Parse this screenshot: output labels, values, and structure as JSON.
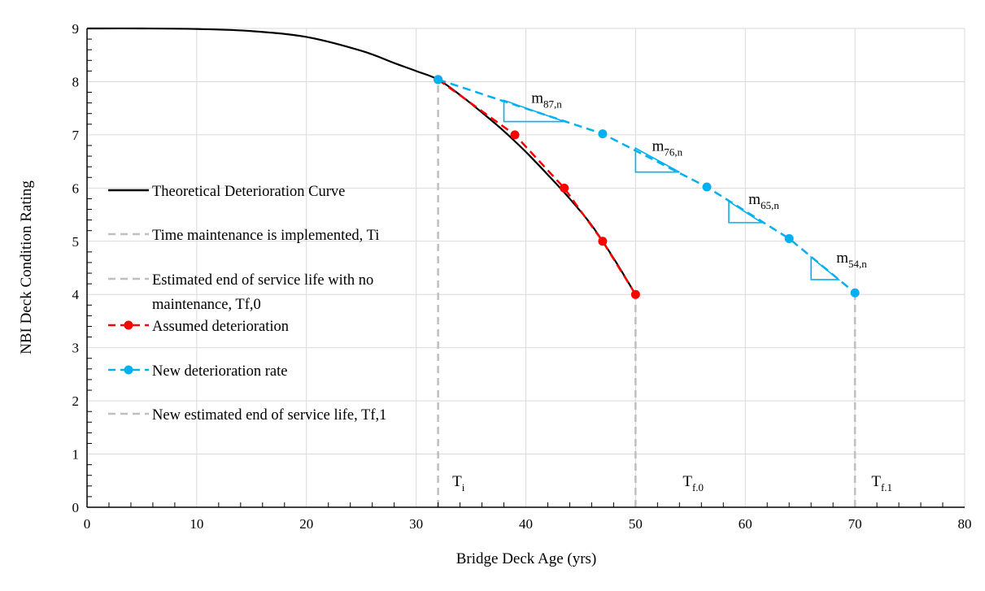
{
  "chart_data": {
    "type": "line",
    "xlabel": "Bridge Deck Age (yrs)",
    "ylabel": "NBI Deck Condition Rating",
    "xlim": [
      0,
      80
    ],
    "ylim": [
      0,
      9
    ],
    "xticks": [
      "0",
      "10",
      "20",
      "30",
      "40",
      "50",
      "60",
      "70",
      "80"
    ],
    "yticks": [
      "0",
      "1",
      "2",
      "3",
      "4",
      "5",
      "6",
      "7",
      "8",
      "9"
    ],
    "grid": true,
    "legend_position": "center-left",
    "series": [
      {
        "key": "theoretical",
        "name": "Theoretical Deterioration Curve",
        "style": "solid",
        "color": "#000000",
        "x": [
          0,
          5,
          10,
          15,
          20,
          25,
          28,
          30,
          32,
          34,
          36,
          38,
          40,
          42,
          44,
          46,
          48,
          50
        ],
        "y": [
          9.0,
          9.0,
          8.99,
          8.95,
          8.84,
          8.58,
          8.35,
          8.2,
          8.04,
          7.75,
          7.42,
          7.07,
          6.68,
          6.25,
          5.8,
          5.3,
          4.68,
          4.0
        ]
      },
      {
        "key": "ti",
        "name": "Time maintenance is implemented, Ti",
        "style": "dashed",
        "color": "#bfbfbf",
        "x": [
          32,
          32
        ],
        "y": [
          0,
          8.04
        ]
      },
      {
        "key": "tf0",
        "name": "Estimated end of service life with no maintenance, Tf,0",
        "style": "dashed",
        "color": "#bfbfbf",
        "x": [
          50,
          50
        ],
        "y": [
          0,
          4.0
        ]
      },
      {
        "key": "assumed",
        "name": "Assumed deterioration",
        "style": "dashed-markers",
        "color": "#ff0000",
        "x": [
          32,
          39,
          43.5,
          47,
          50
        ],
        "y": [
          8.04,
          7.0,
          6.0,
          5.0,
          4.0
        ]
      },
      {
        "key": "new_rate",
        "name": "New deterioration rate",
        "style": "dashed-markers",
        "color": "#00b0f0",
        "x": [
          32,
          47,
          56.5,
          64,
          70
        ],
        "y": [
          8.04,
          7.02,
          6.02,
          5.05,
          4.03
        ]
      },
      {
        "key": "tf1",
        "name": "New estimated end of service life, Tf,1",
        "style": "dashed",
        "color": "#bfbfbf",
        "x": [
          70,
          70
        ],
        "y": [
          0,
          4.03
        ]
      }
    ],
    "annotations": [
      {
        "main": "m",
        "sub": "87,n",
        "x": 40.5,
        "y": 7.6
      },
      {
        "main": "m",
        "sub": "76,n",
        "x": 51.5,
        "y": 6.7
      },
      {
        "main": "m",
        "sub": "65,n",
        "x": 60.3,
        "y": 5.7
      },
      {
        "main": "m",
        "sub": "54,n",
        "x": 68.3,
        "y": 4.6
      },
      {
        "main": "T",
        "sub": "i",
        "x": 33.3,
        "y": 0.4
      },
      {
        "main": "T",
        "sub": "f.0",
        "x": 54.3,
        "y": 0.4
      },
      {
        "main": "T",
        "sub": "f.1",
        "x": 71.5,
        "y": 0.4
      }
    ],
    "slope_triangles": [
      {
        "x1": 38,
        "y1": 7.65,
        "x2": 43.5,
        "y2": 7.25
      },
      {
        "x1": 50,
        "y1": 6.75,
        "x2": 54,
        "y2": 6.3
      },
      {
        "x1": 58.5,
        "y1": 5.75,
        "x2": 61.5,
        "y2": 5.35
      },
      {
        "x1": 66,
        "y1": 4.7,
        "x2": 68.5,
        "y2": 4.28
      }
    ]
  }
}
